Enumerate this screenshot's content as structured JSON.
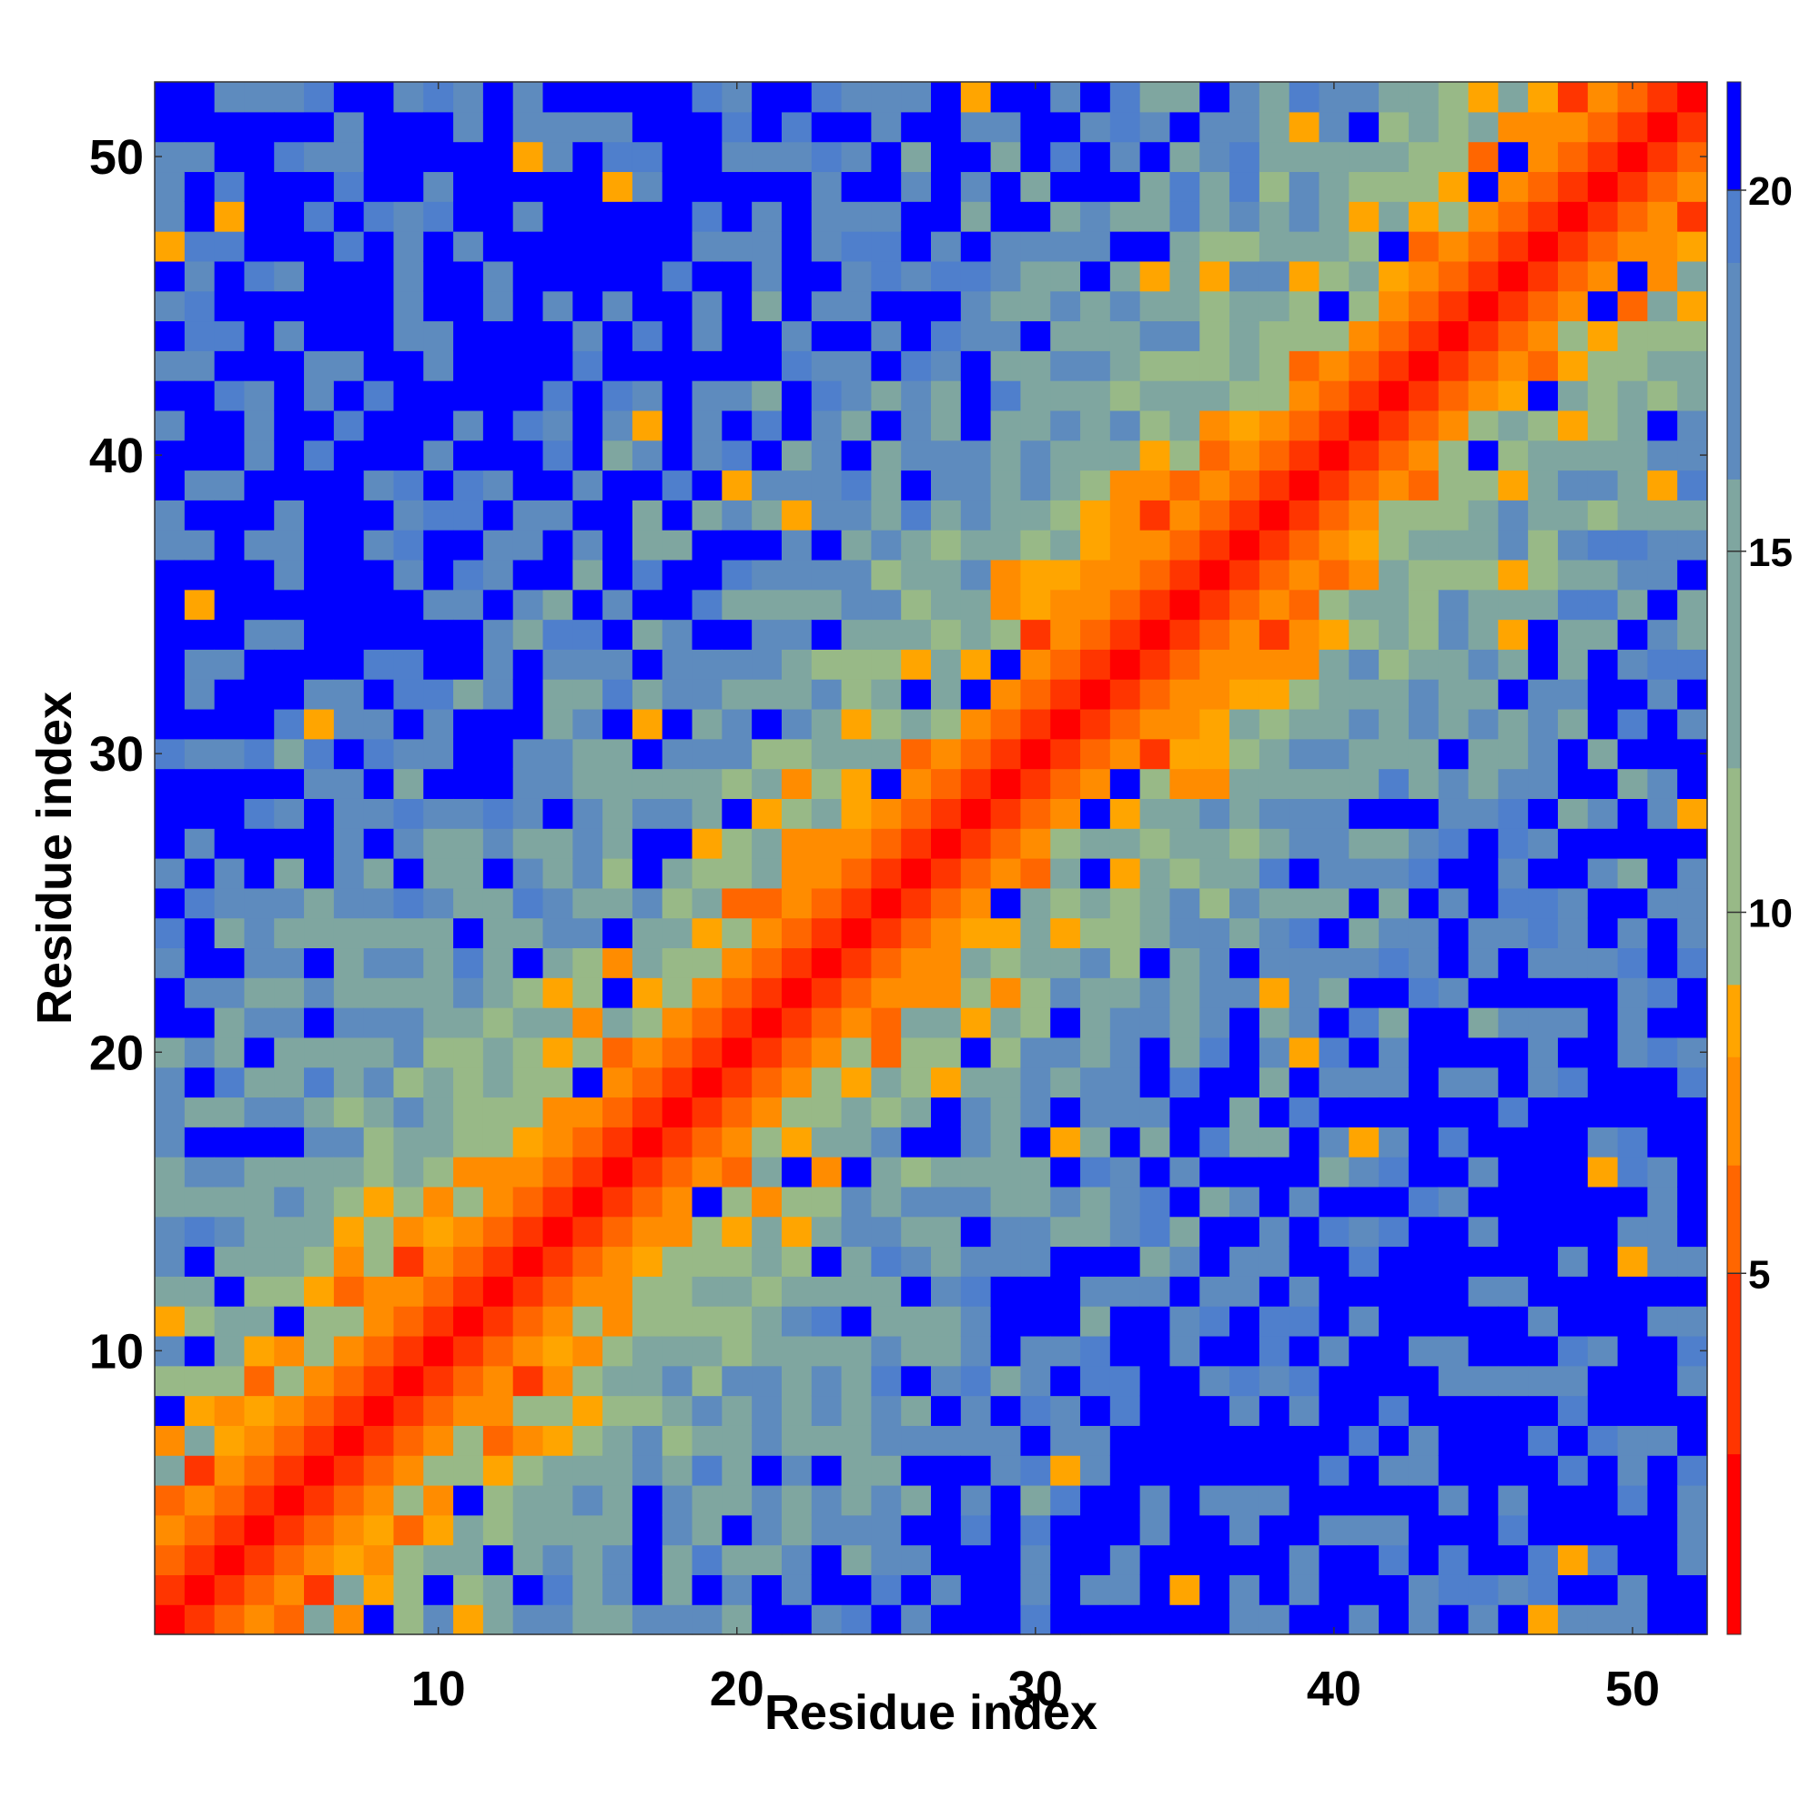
{
  "chart_data": {
    "type": "heatmap",
    "title": "",
    "xlabel": "Residue index",
    "ylabel": "Residue index",
    "n_residues": 52,
    "x_range": [
      0.5,
      52.5
    ],
    "y_range": [
      0.5,
      52.5
    ],
    "x_ticks": [
      10,
      20,
      30,
      40,
      50
    ],
    "y_ticks": [
      10,
      20,
      30,
      40,
      50
    ],
    "colorbar": {
      "ticks": [
        5,
        10,
        15,
        20
      ],
      "range": [
        0,
        21.5
      ],
      "bands": [
        {
          "from": 0,
          "to": 2.5,
          "color": "#ff0000"
        },
        {
          "from": 2.5,
          "to": 5.0,
          "color": "#ff3500"
        },
        {
          "from": 5.0,
          "to": 6.5,
          "color": "#ff6600"
        },
        {
          "from": 6.5,
          "to": 8.0,
          "color": "#ff8c00"
        },
        {
          "from": 8.0,
          "to": 9.0,
          "color": "#ffa500"
        },
        {
          "from": 9.0,
          "to": 12.0,
          "color": "#98b987"
        },
        {
          "from": 12.0,
          "to": 16.0,
          "color": "#7fa6a0"
        },
        {
          "from": 16.0,
          "to": 19.0,
          "color": "#5e8bbe"
        },
        {
          "from": 19.0,
          "to": 20.0,
          "color": "#4f7fcc"
        },
        {
          "from": 20.0,
          "to": 21.5,
          "color": "#0000ff"
        }
      ]
    },
    "value_description": "Symmetric residue-residue distance map; near-diagonal cells are short distances (red/orange), distant pairs are large values (blue).",
    "diagonal_profile": [
      {
        "offset": 0,
        "value": 1.0
      },
      {
        "offset": 1,
        "value": 3.8
      },
      {
        "offset": 2,
        "value": 5.5
      },
      {
        "offset": 3,
        "value": 6.8
      },
      {
        "offset": 4,
        "value": 8.3
      },
      {
        "offset": 5,
        "value": 10.0
      },
      {
        "offset": 6,
        "value": 11.0
      },
      {
        "offset": 8,
        "value": 13.0
      },
      {
        "offset": 12,
        "value": 16.0
      },
      {
        "offset": 18,
        "value": 18.5
      },
      {
        "offset": 30,
        "value": 21.0
      }
    ]
  }
}
